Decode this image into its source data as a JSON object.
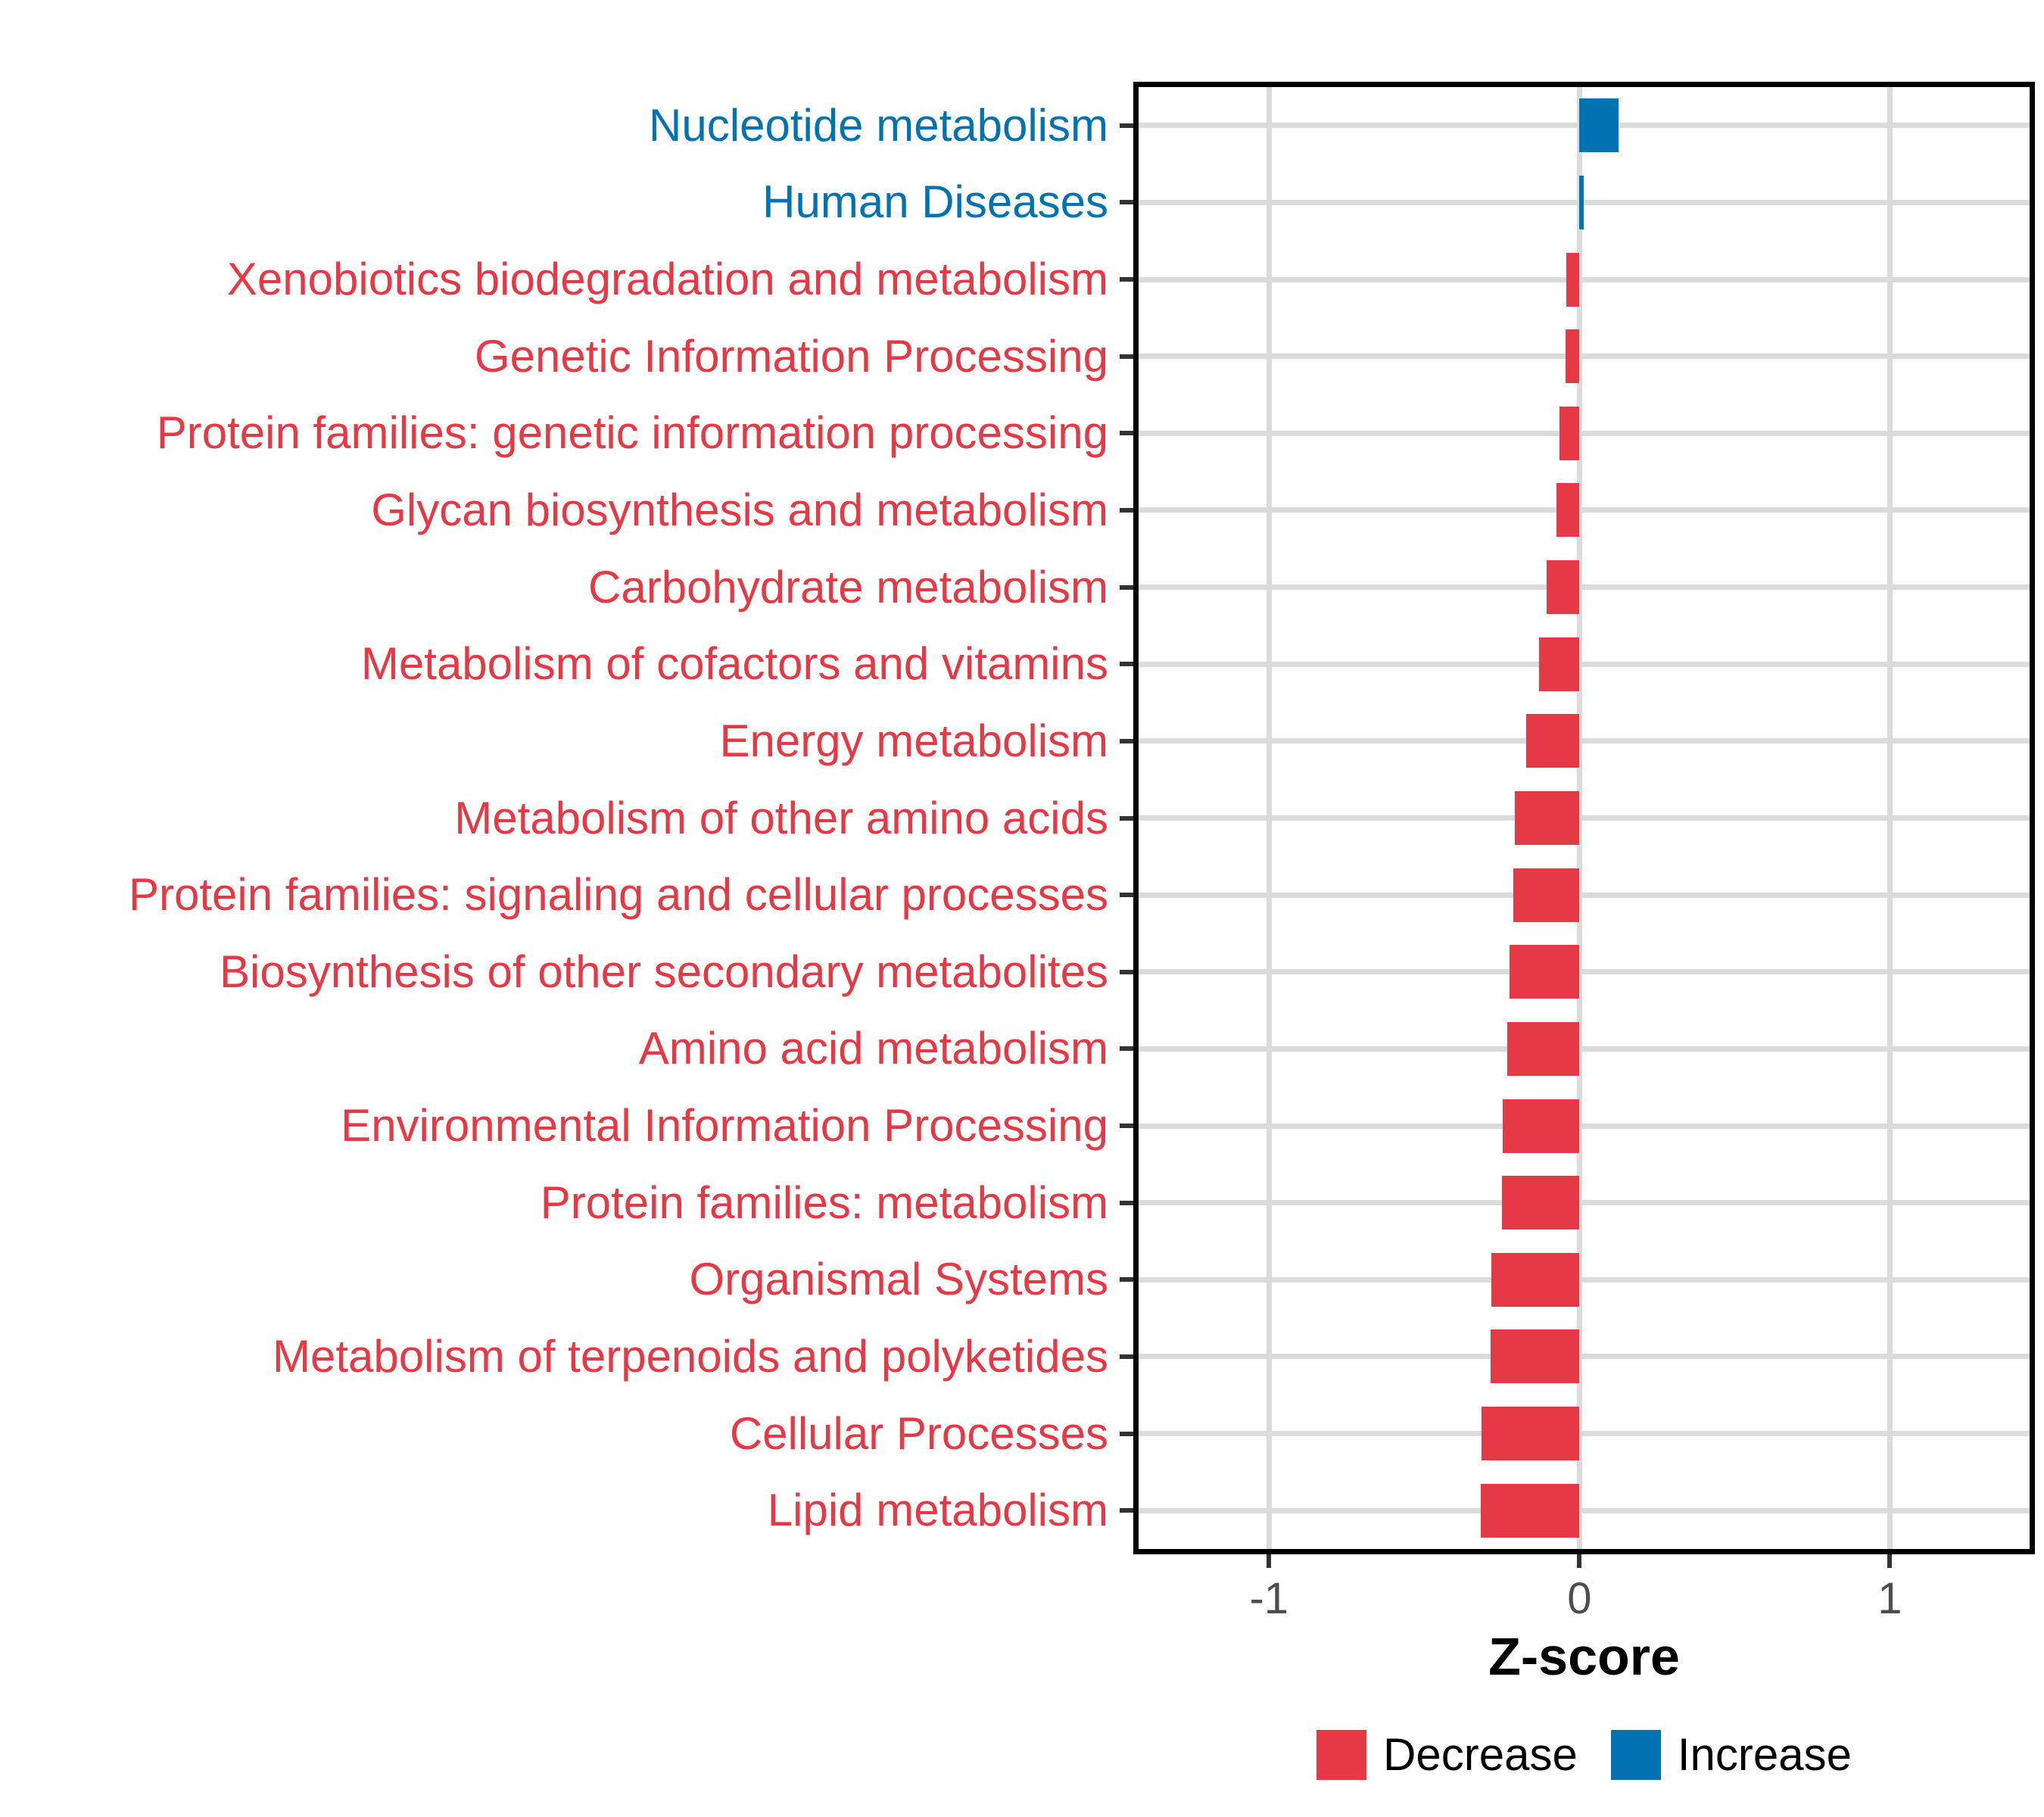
{
  "chart_data": {
    "type": "bar",
    "orientation": "horizontal",
    "title": "",
    "xlabel": "Z-score",
    "ylabel": "",
    "grid": "major",
    "legend_position": "bottom",
    "xlim": [
      -1.42,
      1.45
    ],
    "x_ticks": [
      {
        "label": "-1",
        "value": -1
      },
      {
        "label": "0",
        "value": 0
      },
      {
        "label": "1",
        "value": 1
      }
    ],
    "categories": [
      "Nucleotide metabolism",
      "Human Diseases",
      "Xenobiotics biodegradation and metabolism",
      "Genetic Information Processing",
      "Protein families: genetic information processing",
      "Glycan biosynthesis and metabolism",
      "Carbohydrate metabolism",
      "Metabolism of cofactors and vitamins",
      "Energy metabolism",
      "Metabolism of other amino acids",
      "Protein families: signaling and cellular processes",
      "Biosynthesis of other secondary metabolites",
      "Amino acid metabolism",
      "Environmental Information Processing",
      "Protein families: metabolism",
      "Organismal Systems",
      "Metabolism of terpenoids and polyketides",
      "Cellular Processes",
      "Lipid metabolism"
    ],
    "values": [
      0.126,
      0.015,
      -0.042,
      -0.044,
      -0.065,
      -0.074,
      -0.105,
      -0.131,
      -0.171,
      -0.209,
      -0.213,
      -0.224,
      -0.233,
      -0.246,
      -0.25,
      -0.284,
      -0.287,
      -0.316,
      -0.319
    ],
    "groups": [
      "Increase",
      "Increase",
      "Decrease",
      "Decrease",
      "Decrease",
      "Decrease",
      "Decrease",
      "Decrease",
      "Decrease",
      "Decrease",
      "Decrease",
      "Decrease",
      "Decrease",
      "Decrease",
      "Decrease",
      "Decrease",
      "Decrease",
      "Decrease",
      "Decrease"
    ]
  },
  "axis": {
    "title": "Z-score"
  },
  "legend": {
    "items": [
      {
        "label": "Decrease",
        "color": "#E63946"
      },
      {
        "label": "Increase",
        "color": "#0173B3"
      }
    ]
  },
  "colors": {
    "decrease": "#E63946",
    "increase": "#0173B3",
    "gridline": "#DBDBDB",
    "tick_label": "#4D4D4D",
    "panel_border": "#000000"
  }
}
